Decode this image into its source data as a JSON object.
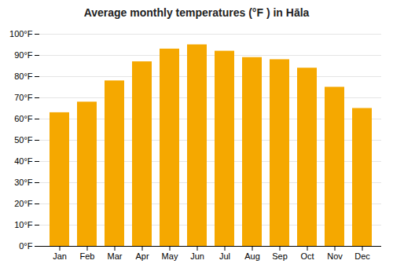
{
  "chart_data": {
    "type": "bar",
    "title": "Average monthly temperatures (°F ) in Hāla",
    "categories": [
      "Jan",
      "Feb",
      "Mar",
      "Apr",
      "May",
      "Jun",
      "Jul",
      "Aug",
      "Sep",
      "Oct",
      "Nov",
      "Dec"
    ],
    "values": [
      63,
      68,
      78,
      87,
      93,
      95,
      92,
      89,
      88,
      84,
      75,
      65
    ],
    "color": "#F5A800",
    "ylim": [
      0,
      100
    ],
    "yticks": [
      {
        "value": 0,
        "label": "0°F"
      },
      {
        "value": 10,
        "label": "10°F"
      },
      {
        "value": 20,
        "label": "20°F"
      },
      {
        "value": 30,
        "label": "30°F"
      },
      {
        "value": 40,
        "label": "40°F"
      },
      {
        "value": 50,
        "label": "50°F"
      },
      {
        "value": 60,
        "label": "60°F"
      },
      {
        "value": 70,
        "label": "70°F"
      },
      {
        "value": 80,
        "label": "80°F"
      },
      {
        "value": 90,
        "label": "90°F"
      },
      {
        "value": 100,
        "label": "100°F"
      }
    ],
    "grid": true
  }
}
